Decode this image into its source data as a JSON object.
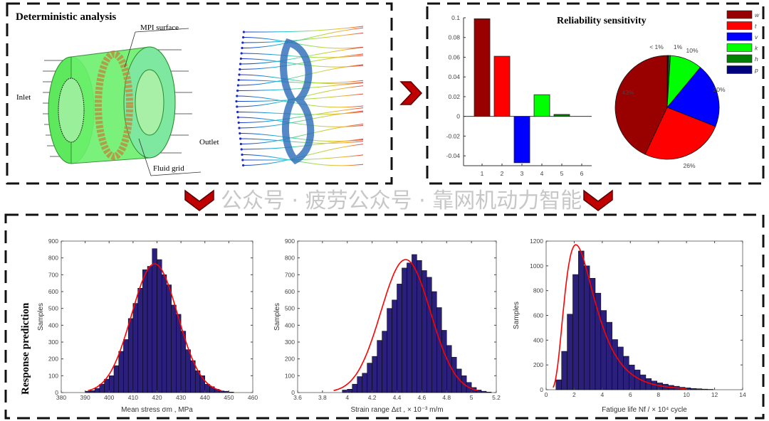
{
  "panels": {
    "deterministic": {
      "title": "Deterministic analysis",
      "labels": {
        "mpi": "MPI surface",
        "inlet": "Inlet",
        "outlet": "Outlet",
        "fluid": "Fluid grid"
      }
    },
    "sensitivity": {
      "title": "Reliability sensitivity"
    },
    "response": {
      "title": "Response prediction"
    }
  },
  "watermark": "公众号 · 疲劳公众号 · 靠网机动力智能",
  "colors": {
    "arrow": "#c00000",
    "bar": "#2a1f7a",
    "fit": "#ff0000",
    "dash": "#111111"
  },
  "chart_data": [
    {
      "type": "bar",
      "categories": [
        "1",
        "2",
        "3",
        "4",
        "5",
        "6"
      ],
      "values": [
        0.099,
        0.061,
        -0.047,
        0.022,
        0.002,
        0
      ],
      "colors": [
        "#990000",
        "#ff0000",
        "#0000ff",
        "#00ff00",
        "#007f00",
        "#00007f"
      ],
      "ylim": [
        -0.05,
        0.1
      ],
      "yticks": [
        "-0.04",
        "-0.02",
        "0",
        "0.02",
        "0.04",
        "0.06",
        "0.08",
        "0.1"
      ],
      "grid": false
    },
    {
      "type": "pie",
      "legend": [
        "w",
        "t",
        "v",
        "k",
        "h",
        "p"
      ],
      "legend_position": "top-right",
      "colors": [
        "#990000",
        "#ff0000",
        "#0000ff",
        "#00ff00",
        "#007f00",
        "#00007f"
      ],
      "values": [
        43,
        26,
        20,
        10,
        0.6,
        0.4
      ],
      "labels": [
        "43%",
        "26%",
        "20%",
        "10%",
        "1%",
        "< 1%"
      ]
    },
    {
      "type": "bar",
      "xlabel": "Mean stress σm , MPa",
      "ylabel": "Samples",
      "xlim": [
        380,
        460
      ],
      "ylim": [
        0,
        900
      ],
      "xticks": [
        "380",
        "390",
        "400",
        "410",
        "420",
        "430",
        "440",
        "450",
        "460"
      ],
      "yticks": [
        "0",
        "100",
        "200",
        "300",
        "400",
        "500",
        "600",
        "700",
        "800",
        "900"
      ],
      "bin_start": 390,
      "bin_width": 2,
      "values": [
        8,
        12,
        25,
        50,
        80,
        100,
        160,
        245,
        315,
        440,
        530,
        620,
        730,
        750,
        855,
        790,
        700,
        640,
        520,
        465,
        365,
        255,
        190,
        130,
        100,
        50,
        35,
        20,
        10,
        8,
        3
      ],
      "fit": {
        "dist": "normal",
        "mean": 419,
        "sd": 9.6
      }
    },
    {
      "type": "bar",
      "xlabel": "Strain range Δεt , × 10⁻³ m/m",
      "ylabel": "Samples",
      "xlim": [
        3.6,
        5.2
      ],
      "ylim": [
        0,
        900
      ],
      "xticks": [
        "3.6",
        "3.8",
        "4",
        "4.2",
        "4.4",
        "4.6",
        "4.8",
        "5",
        "5.2"
      ],
      "yticks": [
        "0",
        "100",
        "200",
        "300",
        "400",
        "500",
        "600",
        "700",
        "800",
        "900"
      ],
      "bin_start": 3.96,
      "bin_width": 0.04,
      "values": [
        15,
        20,
        50,
        95,
        115,
        175,
        215,
        310,
        365,
        500,
        550,
        645,
        740,
        770,
        820,
        785,
        725,
        685,
        600,
        505,
        370,
        280,
        210,
        140,
        100,
        60,
        30,
        15,
        8,
        3
      ],
      "fit": {
        "dist": "normal",
        "mean": 4.47,
        "sd": 0.2
      }
    },
    {
      "type": "bar",
      "xlabel": "Fatigue life Nf / × 10⁴ cycle",
      "ylabel": "Samples",
      "xlim": [
        0,
        14
      ],
      "ylim": [
        0,
        1200
      ],
      "xticks": [
        "0",
        "2",
        "4",
        "6",
        "8",
        "10",
        "12",
        "14"
      ],
      "yticks": [
        "0",
        "200",
        "400",
        "600",
        "800",
        "1000",
        "1200"
      ],
      "bin_start": 0.7,
      "bin_width": 0.4,
      "values": [
        80,
        310,
        610,
        930,
        1120,
        1000,
        900,
        780,
        640,
        545,
        405,
        345,
        270,
        200,
        160,
        120,
        90,
        70,
        55,
        45,
        35,
        28,
        20,
        15,
        10,
        8,
        5,
        3
      ],
      "fit": {
        "dist": "lognormal",
        "mu": 1.0,
        "sigma": 0.5
      }
    }
  ]
}
